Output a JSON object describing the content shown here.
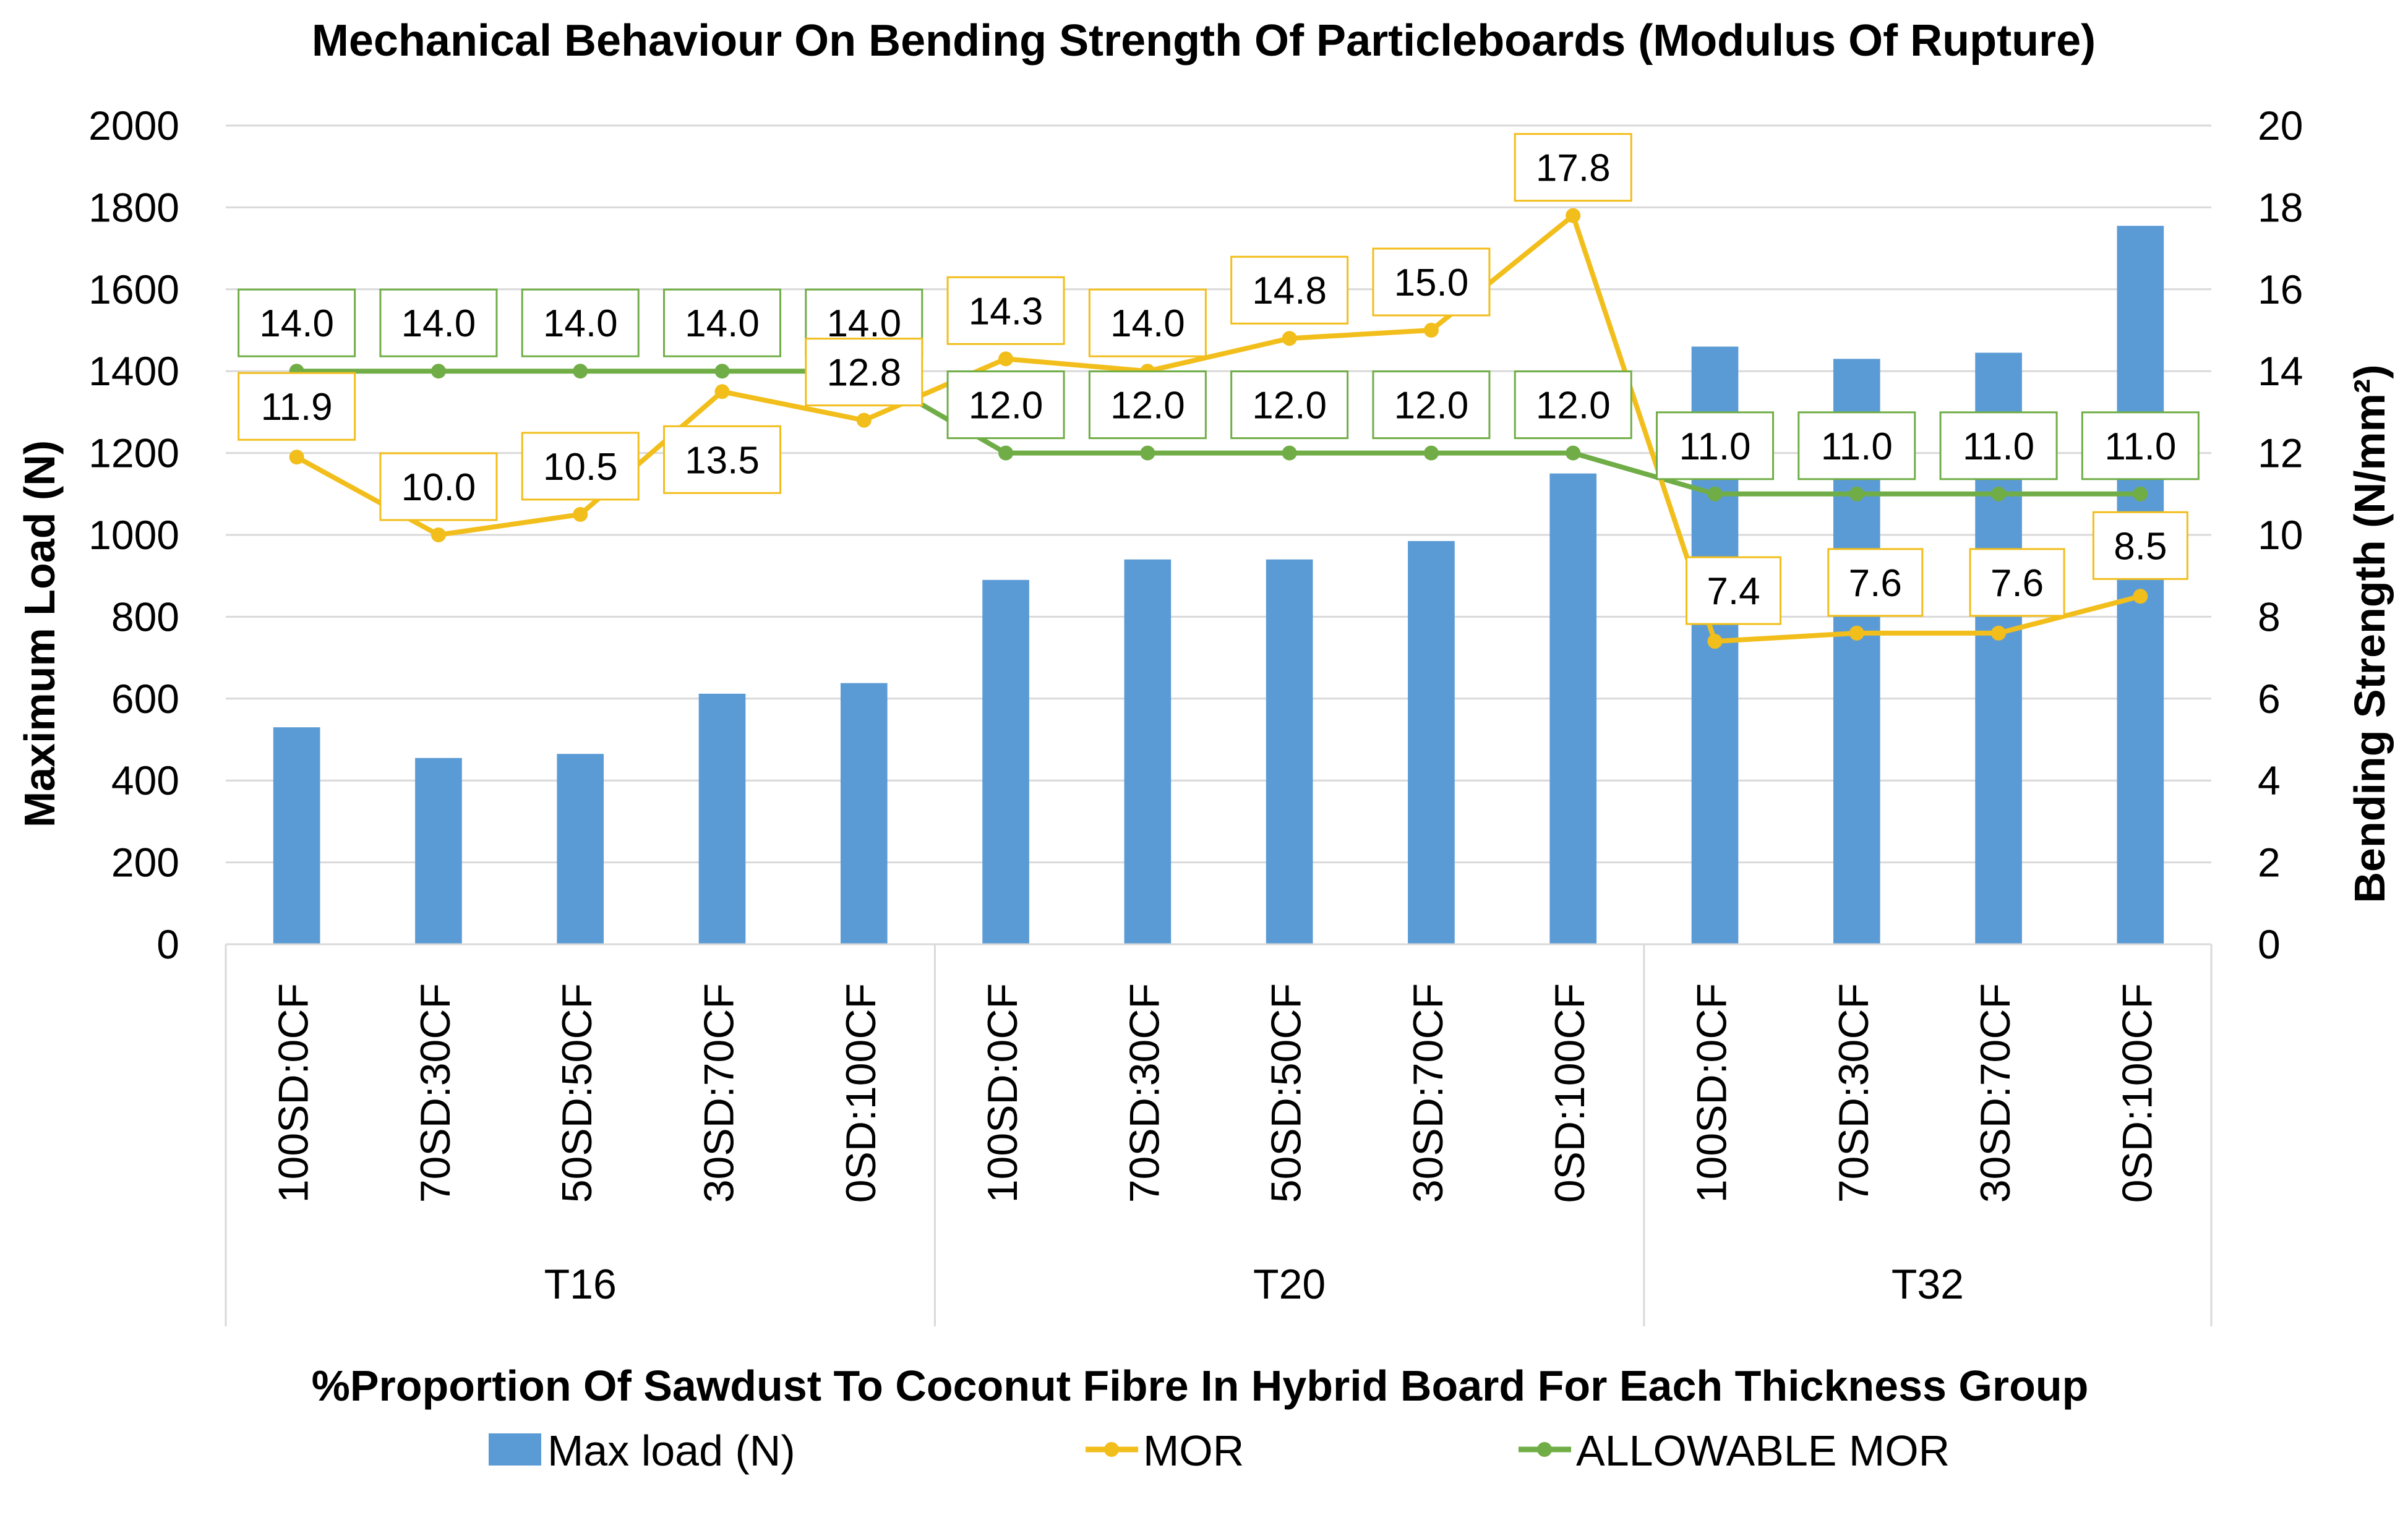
{
  "chart_data": {
    "type": "bar+line",
    "title": "Mechanical Behaviour On Bending Strength Of Particleboards (Modulus Of Rupture)",
    "xlabel": "%Proportion Of Sawdust To Coconut Fibre In Hybrid Board For Each Thickness Group",
    "ylabel_left": "Maximum Load (N)",
    "ylabel_right": "Bending Strength (N/mm²)",
    "ylim_left": [
      0,
      2000
    ],
    "ylim_right": [
      0,
      20
    ],
    "yticks_left": [
      "0",
      "200",
      "400",
      "600",
      "800",
      "1000",
      "1200",
      "1400",
      "1600",
      "1800",
      "2000"
    ],
    "yticks_right": [
      "0",
      "2",
      "4",
      "6",
      "8",
      "10",
      "12",
      "14",
      "16",
      "18",
      "20"
    ],
    "grid": true,
    "legend_position": "bottom",
    "groups": [
      {
        "name": "T16",
        "categories": [
          "100SD:0CF",
          "70SD:30CF",
          "50SD:50CF",
          "30SD:70CF",
          "0SD:100CF"
        ]
      },
      {
        "name": "T20",
        "categories": [
          "100SD:0CF",
          "70SD:30CF",
          "50SD:50CF",
          "30SD:70CF",
          "0SD:100CF"
        ]
      },
      {
        "name": "T32",
        "categories": [
          "100SD:0CF",
          "70SD:30CF",
          "30SD:70CF",
          "0SD:100CF"
        ]
      }
    ],
    "series": [
      {
        "name": "Max load (N)",
        "kind": "bar",
        "axis": "left",
        "color": "#5B9BD5",
        "values": [
          530,
          455,
          465,
          612,
          638,
          890,
          940,
          940,
          985,
          1150,
          1460,
          1430,
          1445,
          1755
        ]
      },
      {
        "name": "MOR",
        "kind": "line",
        "axis": "right",
        "color": "#F2BE1B",
        "values": [
          11.9,
          10.0,
          10.5,
          13.5,
          12.8,
          14.3,
          14.0,
          14.8,
          15.0,
          17.8,
          7.4,
          7.6,
          7.6,
          8.5
        ],
        "labels": [
          "11.9",
          "10.0",
          "10.5",
          "13.5",
          "12.8",
          "14.3",
          "14.0",
          "14.8",
          "15.0",
          "17.8",
          "7.4",
          "7.6",
          "7.6",
          "8.5"
        ]
      },
      {
        "name": "ALLOWABLE MOR",
        "kind": "line",
        "axis": "right",
        "color": "#70AD47",
        "values": [
          14.0,
          14.0,
          14.0,
          14.0,
          14.0,
          12.0,
          12.0,
          12.0,
          12.0,
          12.0,
          11.0,
          11.0,
          11.0,
          11.0
        ],
        "labels": [
          "14.0",
          "14.0",
          "14.0",
          "14.0",
          "14.0",
          "12.0",
          "12.0",
          "12.0",
          "12.0",
          "12.0",
          "11.0",
          "11.0",
          "11.0",
          "11.0"
        ]
      }
    ]
  },
  "legend": {
    "bar_label": "Max load (N)",
    "mor_label": "MOR",
    "allowable_label": "ALLOWABLE MOR"
  }
}
